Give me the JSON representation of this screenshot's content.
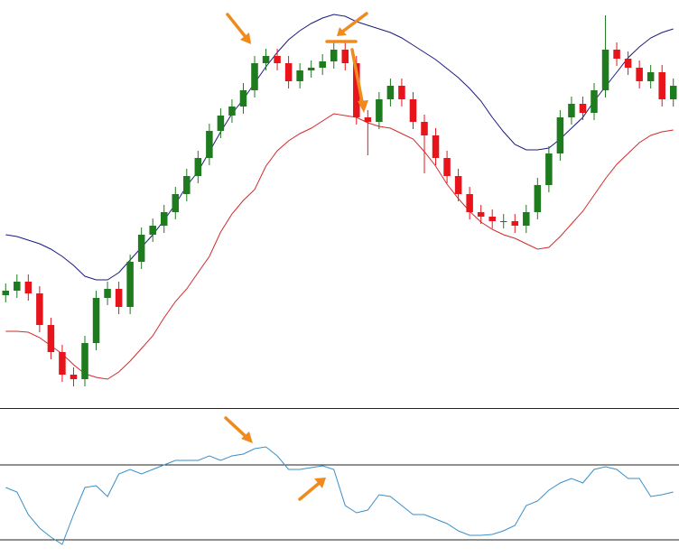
{
  "chart_data": [
    {
      "type": "candlestick",
      "open": [
        125,
        130,
        140,
        127,
        92,
        62,
        37,
        32,
        72,
        122,
        132,
        112,
        162,
        192,
        202,
        217,
        237,
        257,
        277,
        307,
        324,
        334,
        352,
        382,
        390,
        382,
        362,
        374,
        377,
        384,
        397,
        382,
        322,
        317,
        342,
        357,
        342,
        317,
        302,
        277,
        257,
        237,
        217,
        212,
        207,
        207,
        202,
        217,
        247,
        282,
        322,
        337,
        327,
        352,
        397,
        387,
        377,
        362,
        372,
        342
      ],
      "high": [
        138,
        148,
        148,
        135,
        100,
        70,
        45,
        80,
        130,
        140,
        140,
        170,
        200,
        210,
        225,
        245,
        265,
        285,
        315,
        332,
        342,
        360,
        390,
        398,
        398,
        390,
        382,
        385,
        392,
        405,
        405,
        390,
        330,
        350,
        365,
        365,
        350,
        325,
        310,
        285,
        265,
        245,
        225,
        220,
        215,
        215,
        225,
        255,
        290,
        330,
        345,
        345,
        360,
        435,
        405,
        395,
        385,
        380,
        380,
        365
      ],
      "low": [
        117,
        122,
        119,
        84,
        54,
        29,
        24,
        24,
        64,
        114,
        104,
        104,
        154,
        184,
        194,
        209,
        229,
        249,
        269,
        299,
        316,
        326,
        344,
        374,
        374,
        354,
        354,
        366,
        369,
        376,
        374,
        314,
        280,
        309,
        334,
        334,
        309,
        260,
        269,
        249,
        229,
        209,
        204,
        199,
        199,
        194,
        194,
        209,
        239,
        274,
        314,
        319,
        319,
        344,
        379,
        369,
        354,
        354,
        334,
        334
      ],
      "close": [
        130,
        140,
        127,
        92,
        62,
        37,
        32,
        72,
        122,
        132,
        112,
        162,
        192,
        202,
        217,
        237,
        257,
        277,
        307,
        324,
        334,
        352,
        382,
        390,
        382,
        362,
        374,
        377,
        384,
        397,
        382,
        322,
        317,
        342,
        357,
        342,
        317,
        302,
        277,
        257,
        237,
        217,
        212,
        207,
        207,
        202,
        217,
        247,
        282,
        322,
        337,
        327,
        352,
        397,
        387,
        377,
        362,
        372,
        342,
        357
      ],
      "up_color": "#1e7b1e",
      "down_color": "#e8141c",
      "series": [
        {
          "color": "#1a1a80",
          "values": [
            192,
            190,
            186,
            182,
            176,
            168,
            158,
            146,
            142,
            142,
            150,
            164,
            178,
            192,
            208,
            226,
            246,
            262,
            284,
            306,
            326,
            342,
            360,
            378,
            394,
            408,
            418,
            426,
            432,
            436,
            434,
            428,
            424,
            420,
            416,
            410,
            402,
            394,
            386,
            376,
            366,
            354,
            340,
            322,
            306,
            292,
            286,
            286,
            288,
            298,
            310,
            322,
            340,
            356,
            372,
            388,
            400,
            410,
            416,
            420
          ]
        },
        {
          "color": "#d42a2a",
          "values": [
            85,
            85,
            84,
            78,
            69,
            60,
            48,
            38,
            34,
            32,
            40,
            52,
            66,
            80,
            100,
            118,
            132,
            150,
            168,
            195,
            215,
            230,
            242,
            268,
            285,
            296,
            304,
            310,
            318,
            326,
            324,
            322,
            316,
            312,
            310,
            304,
            298,
            284,
            268,
            248,
            232,
            218,
            206,
            198,
            192,
            188,
            182,
            176,
            178,
            190,
            204,
            218,
            236,
            254,
            270,
            282,
            294,
            302,
            306,
            308
          ]
        }
      ],
      "ylim": [
        0,
        452
      ]
    },
    {
      "type": "line",
      "series": [
        {
          "color": "#3a8fc8",
          "values": [
            58,
            53,
            28,
            13,
            3,
            -5,
            28,
            58,
            60,
            48,
            73,
            78,
            73,
            78,
            83,
            88,
            88,
            88,
            93,
            88,
            93,
            95,
            101,
            103,
            93,
            78,
            78,
            80,
            82,
            78,
            38,
            30,
            33,
            50,
            48,
            38,
            28,
            28,
            23,
            18,
            10,
            5,
            5,
            6,
            10,
            16,
            38,
            43,
            55,
            63,
            68,
            63,
            78,
            81,
            78,
            68,
            68,
            48,
            50,
            53
          ]
        }
      ],
      "levels": [
        83,
        0
      ],
      "level_color": "#222222",
      "ylim": [
        -19,
        145
      ]
    }
  ]
}
